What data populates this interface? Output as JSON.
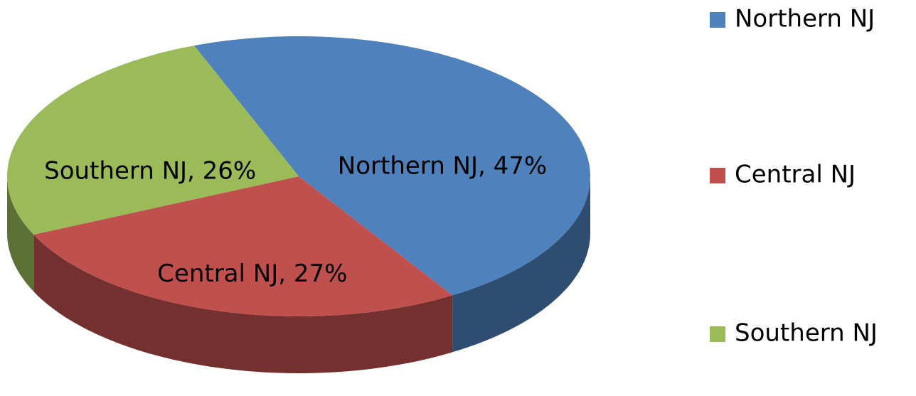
{
  "chart_data": {
    "type": "pie",
    "categories": [
      "Northern NJ",
      "Central NJ",
      "Southern NJ"
    ],
    "values": [
      47,
      27,
      26
    ],
    "value_labels": [
      "Northern NJ, 47%",
      "Central NJ, 27%",
      "Southern NJ, 26%"
    ],
    "colors": [
      "#4f81bd",
      "#c0504d",
      "#9bbb59"
    ],
    "legend": "right"
  }
}
